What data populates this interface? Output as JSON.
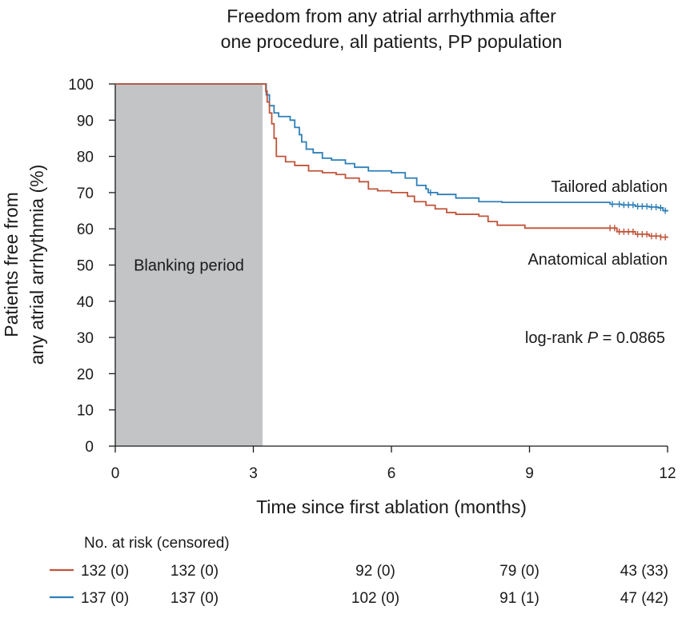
{
  "chart_data": {
    "type": "line",
    "title_lines": [
      "Freedom from any atrial arrhythmia after",
      "one procedure, all patients, PP population"
    ],
    "xlabel": "Time since first ablation (months)",
    "ylabel_lines": [
      "Patients free from",
      "any atrial arrhythmia (%)"
    ],
    "xlim": [
      0,
      12
    ],
    "ylim": [
      0,
      100
    ],
    "xticks": [
      0,
      3,
      6,
      9,
      12
    ],
    "yticks": [
      0,
      10,
      20,
      30,
      40,
      50,
      60,
      70,
      80,
      90,
      100
    ],
    "blanking": {
      "x_start": 0,
      "x_end": 3.2,
      "label": "Blanking period",
      "color": "#c3c4c6"
    },
    "annotations": {
      "tailored_label": "Tailored ablation",
      "anatomical_label": "Anatomical ablation",
      "logrank_prefix": "log-rank ",
      "logrank_p": "P",
      "logrank_value": " = 0.0865"
    },
    "series": [
      {
        "key": "tailored",
        "color": "#2e7fb8",
        "points": [
          [
            0,
            100
          ],
          [
            3.2,
            100
          ],
          [
            3.28,
            97
          ],
          [
            3.35,
            94
          ],
          [
            3.45,
            92
          ],
          [
            3.55,
            91
          ],
          [
            3.8,
            90
          ],
          [
            3.9,
            88
          ],
          [
            4.0,
            86
          ],
          [
            4.05,
            84
          ],
          [
            4.15,
            82
          ],
          [
            4.3,
            81
          ],
          [
            4.5,
            79.5
          ],
          [
            4.7,
            79
          ],
          [
            5.0,
            78
          ],
          [
            5.2,
            77
          ],
          [
            5.5,
            76
          ],
          [
            6.0,
            75.5
          ],
          [
            6.3,
            74
          ],
          [
            6.55,
            72
          ],
          [
            6.75,
            71
          ],
          [
            6.8,
            70
          ],
          [
            7.0,
            69.5
          ],
          [
            7.4,
            68.5
          ],
          [
            7.9,
            67.5
          ],
          [
            8.4,
            67.3
          ],
          [
            9.0,
            67.3
          ],
          [
            9.6,
            67.3
          ],
          [
            10.6,
            67.3
          ],
          [
            10.75,
            66.8
          ],
          [
            11.0,
            66.6
          ],
          [
            11.3,
            66.2
          ],
          [
            11.6,
            66
          ],
          [
            11.8,
            65.8
          ],
          [
            11.9,
            65
          ],
          [
            12,
            64.8
          ]
        ],
        "censor_x": [
          6.85,
          10.8,
          10.95,
          11.05,
          11.15,
          11.25,
          11.35,
          11.45,
          11.55,
          11.65,
          11.75,
          11.85,
          11.95
        ]
      },
      {
        "key": "anatomical",
        "color": "#c0543a",
        "points": [
          [
            0,
            100
          ],
          [
            3.2,
            100
          ],
          [
            3.27,
            98
          ],
          [
            3.3,
            95
          ],
          [
            3.35,
            92
          ],
          [
            3.4,
            89
          ],
          [
            3.45,
            85
          ],
          [
            3.5,
            80
          ],
          [
            3.7,
            78.5
          ],
          [
            3.9,
            77.5
          ],
          [
            4.2,
            76
          ],
          [
            4.5,
            75.5
          ],
          [
            4.8,
            75
          ],
          [
            5.0,
            74
          ],
          [
            5.3,
            73
          ],
          [
            5.5,
            71
          ],
          [
            5.7,
            70.5
          ],
          [
            6.0,
            70
          ],
          [
            6.35,
            69
          ],
          [
            6.5,
            67.5
          ],
          [
            6.75,
            66.5
          ],
          [
            6.95,
            65.5
          ],
          [
            7.2,
            64.5
          ],
          [
            7.4,
            64
          ],
          [
            7.9,
            63.5
          ],
          [
            8.1,
            62
          ],
          [
            8.3,
            61
          ],
          [
            8.9,
            60.2
          ],
          [
            10.7,
            60.2
          ],
          [
            10.9,
            59.2
          ],
          [
            11.3,
            58.5
          ],
          [
            11.6,
            58
          ],
          [
            11.85,
            57.7
          ],
          [
            12,
            57.5
          ]
        ],
        "censor_x": [
          10.75,
          10.85,
          10.95,
          11.05,
          11.15,
          11.25,
          11.35,
          11.45,
          11.55,
          11.65,
          11.75,
          11.85,
          11.95
        ]
      }
    ],
    "risk_table": {
      "header": "No. at risk (censored)",
      "rows": [
        {
          "color": "#c0543a",
          "values": [
            "132 (0)",
            "132 (0)",
            "92 (0)",
            "79 (0)",
            "43 (33)"
          ]
        },
        {
          "color": "#2e7fb8",
          "values": [
            "137 (0)",
            "137 (0)",
            "102 (0)",
            "91 (1)",
            "47 (42)"
          ]
        }
      ]
    }
  }
}
